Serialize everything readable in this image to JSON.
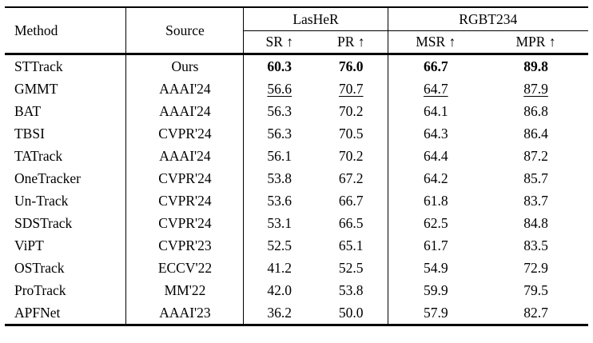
{
  "table": {
    "header": {
      "method": "Method",
      "source": "Source",
      "groups": [
        {
          "label": "LasHeR",
          "cols": [
            "SR ↑",
            "PR ↑"
          ]
        },
        {
          "label": "RGBT234",
          "cols": [
            "MSR ↑",
            "MPR ↑"
          ]
        }
      ]
    },
    "rows": [
      {
        "method": "STTrack",
        "source": "Ours",
        "values": [
          "60.3",
          "76.0",
          "66.7",
          "89.8"
        ],
        "emphasis": "bold"
      },
      {
        "method": "GMMT",
        "source": "AAAI'24",
        "values": [
          "56.6",
          "70.7",
          "64.7",
          "87.9"
        ],
        "emphasis": "underline"
      },
      {
        "method": "BAT",
        "source": "AAAI'24",
        "values": [
          "56.3",
          "70.2",
          "64.1",
          "86.8"
        ],
        "emphasis": "none"
      },
      {
        "method": "TBSI",
        "source": "CVPR'24",
        "values": [
          "56.3",
          "70.5",
          "64.3",
          "86.4"
        ],
        "emphasis": "none"
      },
      {
        "method": "TATrack",
        "source": "AAAI'24",
        "values": [
          "56.1",
          "70.2",
          "64.4",
          "87.2"
        ],
        "emphasis": "none"
      },
      {
        "method": "OneTracker",
        "source": "CVPR'24",
        "values": [
          "53.8",
          "67.2",
          "64.2",
          "85.7"
        ],
        "emphasis": "none"
      },
      {
        "method": "Un-Track",
        "source": "CVPR'24",
        "values": [
          "53.6",
          "66.7",
          "61.8",
          "83.7"
        ],
        "emphasis": "none"
      },
      {
        "method": "SDSTrack",
        "source": "CVPR'24",
        "values": [
          "53.1",
          "66.5",
          "62.5",
          "84.8"
        ],
        "emphasis": "none"
      },
      {
        "method": "ViPT",
        "source": "CVPR'23",
        "values": [
          "52.5",
          "65.1",
          "61.7",
          "83.5"
        ],
        "emphasis": "none"
      },
      {
        "method": "OSTrack",
        "source": "ECCV'22",
        "values": [
          "41.2",
          "52.5",
          "54.9",
          "72.9"
        ],
        "emphasis": "none"
      },
      {
        "method": "ProTrack",
        "source": "MM'22",
        "values": [
          "42.0",
          "53.8",
          "59.9",
          "79.5"
        ],
        "emphasis": "none"
      },
      {
        "method": "APFNet",
        "source": "AAAI'23",
        "values": [
          "36.2",
          "50.0",
          "57.9",
          "82.7"
        ],
        "emphasis": "none"
      }
    ]
  }
}
